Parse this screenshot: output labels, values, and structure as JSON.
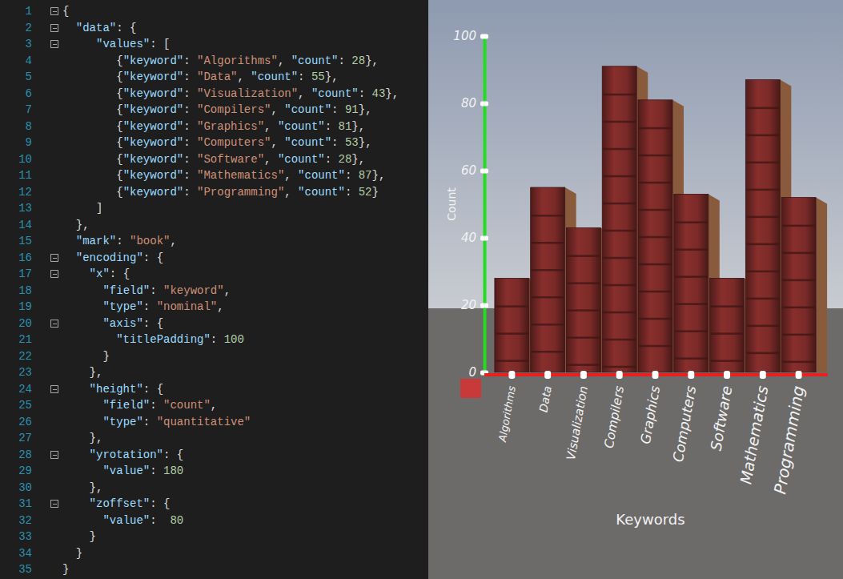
{
  "editor": {
    "lines": [
      {
        "number": 1,
        "code": "{"
      },
      {
        "number": 2,
        "code": "  \"data\": {"
      },
      {
        "number": 3,
        "code": "     \"values\": ["
      },
      {
        "number": 4,
        "code": "        {\"keyword\": \"Algorithms\", \"count\": 28},"
      },
      {
        "number": 5,
        "code": "        {\"keyword\": \"Data\", \"count\": 55},"
      },
      {
        "number": 6,
        "code": "        {\"keyword\": \"Visualization\", \"count\": 43},"
      },
      {
        "number": 7,
        "code": "        {\"keyword\": \"Compilers\", \"count\": 91},"
      },
      {
        "number": 8,
        "code": "        {\"keyword\": \"Graphics\", \"count\": 81},"
      },
      {
        "number": 9,
        "code": "        {\"keyword\": \"Computers\", \"count\": 53},"
      },
      {
        "number": 10,
        "code": "        {\"keyword\": \"Software\", \"count\": 28},"
      },
      {
        "number": 11,
        "code": "        {\"keyword\": \"Mathematics\", \"count\": 87},"
      },
      {
        "number": 12,
        "code": "        {\"keyword\": \"Programming\", \"count\": 52}"
      },
      {
        "number": 13,
        "code": "     ]"
      },
      {
        "number": 14,
        "code": "  },"
      },
      {
        "number": 15,
        "code": "  \"mark\": \"book\","
      },
      {
        "number": 16,
        "code": "  \"encoding\": {"
      },
      {
        "number": 17,
        "code": "    \"x\": {"
      },
      {
        "number": 18,
        "code": "      \"field\": \"keyword\","
      },
      {
        "number": 19,
        "code": "      \"type\": \"nominal\","
      },
      {
        "number": 20,
        "code": "      \"axis\": {"
      },
      {
        "number": 21,
        "code": "        \"titlePadding\": 100"
      },
      {
        "number": 22,
        "code": "      }"
      },
      {
        "number": 23,
        "code": "    },"
      },
      {
        "number": 24,
        "code": "    \"height\": {"
      },
      {
        "number": 25,
        "code": "      \"field\": \"count\","
      },
      {
        "number": 26,
        "code": "      \"type\": \"quantitative\""
      },
      {
        "number": 27,
        "code": "    },"
      },
      {
        "number": 28,
        "code": "    \"yrotation\": {"
      },
      {
        "number": 29,
        "code": "      \"value\": 180"
      },
      {
        "number": 30,
        "code": "    },"
      },
      {
        "number": 31,
        "code": "    \"zoffset\": {"
      },
      {
        "number": 32,
        "code": "      \"value\":  80"
      },
      {
        "number": 33,
        "code": "    }"
      },
      {
        "number": 34,
        "code": "  }"
      },
      {
        "number": 35,
        "code": "}"
      }
    ]
  },
  "chart_data": {
    "type": "bar",
    "x_label": "Keywords",
    "y_label": "Count",
    "categories": [
      "Algorithms",
      "Data",
      "Visualization",
      "Compilers",
      "Graphics",
      "Computers",
      "Software",
      "Mathematics",
      "Programming"
    ],
    "values": [
      28,
      55,
      43,
      91,
      81,
      53,
      28,
      87,
      52
    ],
    "color": "#7a2a28",
    "ylim": [
      0,
      100
    ],
    "yticks": [
      0,
      20,
      40,
      60,
      80,
      100
    ]
  }
}
